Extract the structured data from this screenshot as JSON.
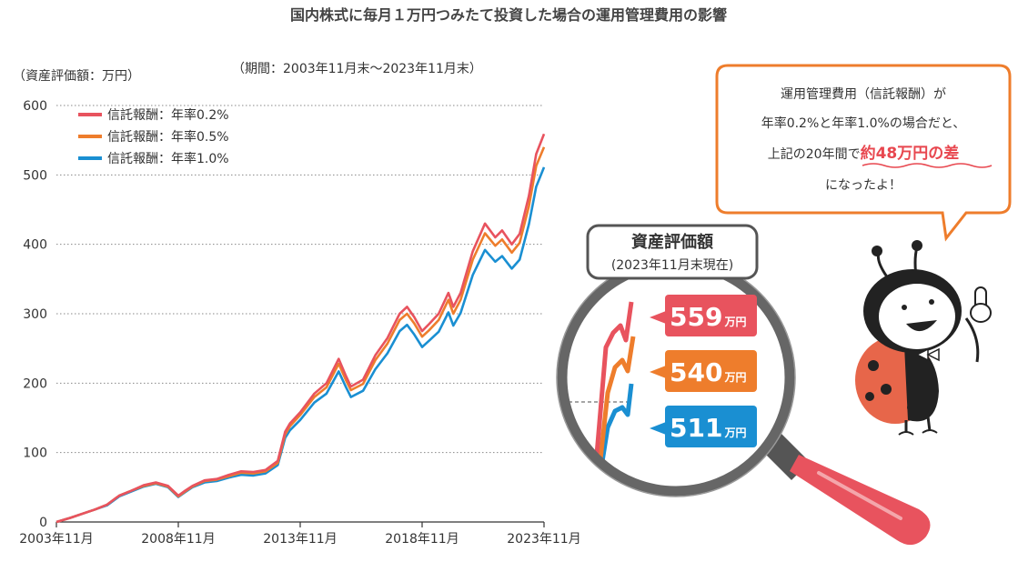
{
  "header": {
    "title": "国内株式に毎月１万円つみたて投資した場合の運用管理費用の影響",
    "y_unit": "（資産評価額：万円）",
    "period": "（期間：2003年11月末〜2023年11月末）"
  },
  "bubble": {
    "line1": "運用管理費用（信託報酬）が",
    "line2": "年率0.2%と年率1.0%の場合だと、",
    "line3_prefix": "上記の20年間で",
    "line3_highlight": "約48万円の差",
    "line4": "になったよ！"
  },
  "lens": {
    "title": "資産評価額",
    "subtitle": "(2023年11月末現在)",
    "badges": [
      {
        "value": "559",
        "unit": "万円",
        "color": "#e8535e"
      },
      {
        "value": "540",
        "unit": "万円",
        "color": "#ee7d2c"
      },
      {
        "value": "511",
        "unit": "万円",
        "color": "#1a8fd2"
      }
    ]
  },
  "chart_data": {
    "type": "line",
    "x": [
      2003.92,
      2004.5,
      2005.0,
      2005.5,
      2006.0,
      2006.5,
      2007.0,
      2007.5,
      2008.0,
      2008.5,
      2008.92,
      2009.2,
      2009.5,
      2010.0,
      2010.5,
      2011.0,
      2011.5,
      2012.0,
      2012.5,
      2013.0,
      2013.3,
      2013.5,
      2013.92,
      2014.5,
      2015.0,
      2015.5,
      2015.8,
      2016.0,
      2016.5,
      2017.0,
      2017.5,
      2018.0,
      2018.3,
      2018.6,
      2018.92,
      2019.2,
      2019.6,
      2020.0,
      2020.2,
      2020.5,
      2021.0,
      2021.5,
      2021.92,
      2022.2,
      2022.6,
      2022.92,
      2023.3,
      2023.6,
      2023.92
    ],
    "series": [
      {
        "name": "信託報酬：年率0.2%",
        "color": "#e8535e",
        "values": [
          0,
          6,
          12,
          18,
          25,
          38,
          45,
          53,
          57,
          52,
          38,
          45,
          52,
          60,
          62,
          68,
          73,
          72,
          75,
          88,
          130,
          142,
          158,
          185,
          200,
          235,
          210,
          195,
          205,
          240,
          265,
          300,
          310,
          295,
          275,
          285,
          300,
          330,
          310,
          330,
          390,
          430,
          410,
          420,
          400,
          415,
          470,
          530,
          559
        ]
      },
      {
        "name": "信託報酬：年率0.5%",
        "color": "#ee7d2c",
        "values": [
          0,
          6,
          12,
          18,
          25,
          38,
          45,
          52,
          56,
          51,
          37,
          44,
          51,
          59,
          61,
          66,
          71,
          70,
          73,
          85,
          126,
          138,
          154,
          180,
          194,
          228,
          204,
          190,
          199,
          233,
          257,
          291,
          300,
          286,
          267,
          276,
          291,
          320,
          300,
          320,
          378,
          416,
          398,
          407,
          388,
          402,
          455,
          513,
          540
        ]
      },
      {
        "name": "信託報酬：年率1.0%",
        "color": "#1a8fd2",
        "values": [
          0,
          6,
          12,
          18,
          24,
          37,
          44,
          51,
          55,
          50,
          36,
          43,
          50,
          57,
          59,
          64,
          68,
          67,
          70,
          82,
          121,
          132,
          147,
          172,
          185,
          217,
          194,
          180,
          189,
          220,
          243,
          275,
          284,
          270,
          252,
          261,
          274,
          302,
          283,
          301,
          356,
          392,
          375,
          383,
          365,
          378,
          429,
          483,
          511
        ]
      }
    ],
    "x_ticks": [
      {
        "value": 2003.92,
        "label": "2003年11月"
      },
      {
        "value": 2008.92,
        "label": "2008年11月"
      },
      {
        "value": 2013.92,
        "label": "2013年11月"
      },
      {
        "value": 2018.92,
        "label": "2018年11月"
      },
      {
        "value": 2023.92,
        "label": "2023年11月"
      }
    ],
    "y_ticks": [
      0,
      100,
      200,
      300,
      400,
      500,
      600
    ],
    "xlim": [
      2003.92,
      2023.92
    ],
    "ylim": [
      0,
      600
    ],
    "grid": "horizontal-dotted",
    "legend": "top-left"
  }
}
